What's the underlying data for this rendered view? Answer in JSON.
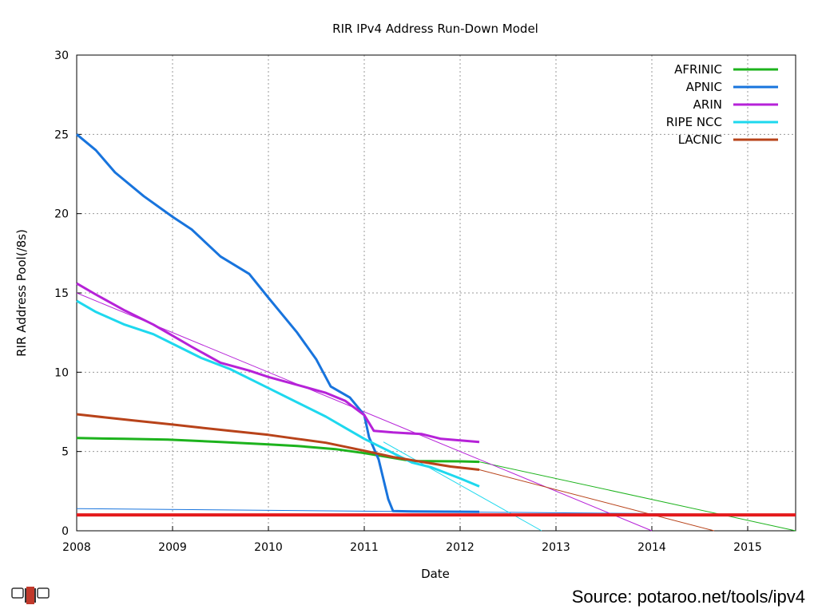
{
  "source_text": "Source: potaroo.net/tools/ipv4",
  "chart_data": {
    "type": "line",
    "title": "RIR IPv4 Address Run-Down Model",
    "xlabel": "Date",
    "ylabel": "RIR Address Pool(/8s)",
    "xlim": [
      2008,
      2015.5
    ],
    "ylim": [
      0,
      30
    ],
    "xticks": [
      2008,
      2009,
      2010,
      2011,
      2012,
      2013,
      2014,
      2015
    ],
    "yticks": [
      0,
      5,
      10,
      15,
      20,
      25,
      30
    ],
    "grid": true,
    "legend_position": "top-right",
    "threshold": {
      "y": 1,
      "color": "#e41a1c"
    },
    "series": [
      {
        "name": "AFRINIC",
        "color": "#1db31d",
        "x": [
          2008,
          2008.5,
          2008.95,
          2009.5,
          2010.0,
          2010.3,
          2010.7,
          2011.0,
          2011.3,
          2011.5,
          2012.0,
          2012.2
        ],
        "values": [
          5.85,
          5.8,
          5.75,
          5.6,
          5.45,
          5.35,
          5.15,
          4.9,
          4.6,
          4.4,
          4.38,
          4.35
        ]
      },
      {
        "name": "APNIC",
        "color": "#1874dd",
        "x": [
          2008,
          2008.2,
          2008.4,
          2008.7,
          2009.0,
          2009.2,
          2009.5,
          2009.8,
          2010.0,
          2010.3,
          2010.5,
          2010.65,
          2010.85,
          2011.0,
          2011.05,
          2011.15,
          2011.25,
          2011.3,
          2011.5,
          2012.2
        ],
        "values": [
          25.0,
          24.0,
          22.6,
          21.1,
          19.8,
          19.0,
          17.3,
          16.2,
          14.7,
          12.5,
          10.8,
          9.1,
          8.4,
          7.3,
          5.9,
          4.5,
          2.0,
          1.25,
          1.22,
          1.2
        ]
      },
      {
        "name": "ARIN",
        "color": "#b622d8",
        "x": [
          2008,
          2008.2,
          2008.5,
          2008.8,
          2009.0,
          2009.2,
          2009.5,
          2009.8,
          2010.0,
          2010.3,
          2010.6,
          2010.8,
          2011.0,
          2011.1,
          2011.3,
          2011.6,
          2011.8,
          2012.2
        ],
        "values": [
          15.6,
          14.9,
          13.9,
          13.0,
          12.3,
          11.6,
          10.6,
          10.1,
          9.7,
          9.2,
          8.7,
          8.2,
          7.3,
          6.3,
          6.2,
          6.1,
          5.8,
          5.6
        ]
      },
      {
        "name": "RIPE NCC",
        "color": "#1ed8ee",
        "x": [
          2008,
          2008.2,
          2008.5,
          2008.8,
          2009.0,
          2009.3,
          2009.6,
          2010.0,
          2010.3,
          2010.6,
          2010.8,
          2011.0,
          2011.2,
          2011.4,
          2011.5,
          2011.7,
          2012.0,
          2012.2
        ],
        "values": [
          14.5,
          13.8,
          13.0,
          12.4,
          11.8,
          10.9,
          10.2,
          9.0,
          8.1,
          7.2,
          6.5,
          5.8,
          5.2,
          4.6,
          4.3,
          4.0,
          3.3,
          2.8
        ]
      },
      {
        "name": "LACNIC",
        "color": "#b8431a",
        "x": [
          2008,
          2008.3,
          2008.6,
          2009.0,
          2009.3,
          2009.6,
          2010.0,
          2010.3,
          2010.6,
          2011.0,
          2011.3,
          2011.6,
          2011.9,
          2012.2
        ],
        "values": [
          7.35,
          7.15,
          6.95,
          6.7,
          6.5,
          6.3,
          6.05,
          5.8,
          5.55,
          5.05,
          4.65,
          4.35,
          4.05,
          3.85
        ]
      }
    ],
    "trend_lines": [
      {
        "series": "AFRINIC",
        "color": "#1db31d",
        "x": [
          2012.2,
          2015.5
        ],
        "values": [
          4.35,
          0.0
        ]
      },
      {
        "series": "APNIC",
        "color": "#1874dd",
        "x": [
          2008,
          2015.5
        ],
        "values": [
          1.4,
          1.0
        ]
      },
      {
        "series": "ARIN",
        "color": "#b622d8",
        "x": [
          2008,
          2014.0
        ],
        "values": [
          15.0,
          0.0
        ]
      },
      {
        "series": "RIPE NCC",
        "color": "#1ed8ee",
        "x": [
          2011.2,
          2012.85
        ],
        "values": [
          5.6,
          0.0
        ]
      },
      {
        "series": "LACNIC",
        "color": "#b8431a",
        "x": [
          2012.2,
          2014.65
        ],
        "values": [
          3.85,
          0.0
        ]
      }
    ]
  }
}
